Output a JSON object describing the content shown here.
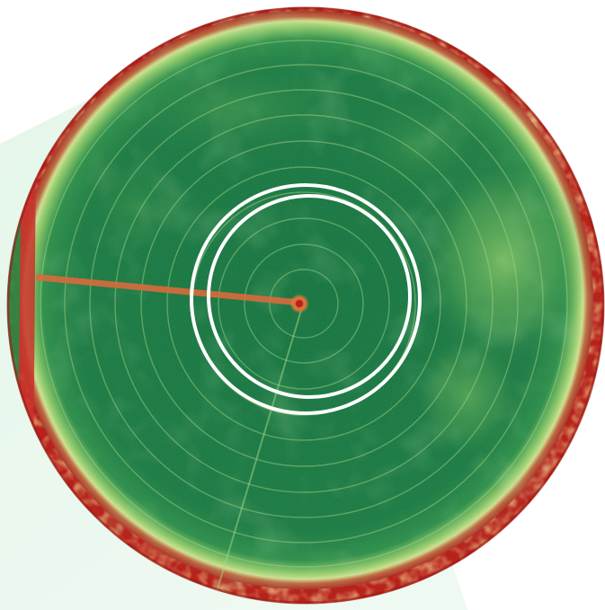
{
  "image": {
    "subject": "center-pivot-field-ndvi",
    "colors": {
      "backdrop_tint": "#e4f6ea",
      "vegetation_dense": "#0f6b38",
      "vegetation_mid": "#2f8f45",
      "vegetation_light": "#8fca64",
      "stress_yellow": "#e9ee9a",
      "stress_red": "#c8332a",
      "bare_soil": "#b7221c",
      "highlight_ring": "#ffffff"
    },
    "icons": [
      "pivot-center-icon"
    ]
  }
}
